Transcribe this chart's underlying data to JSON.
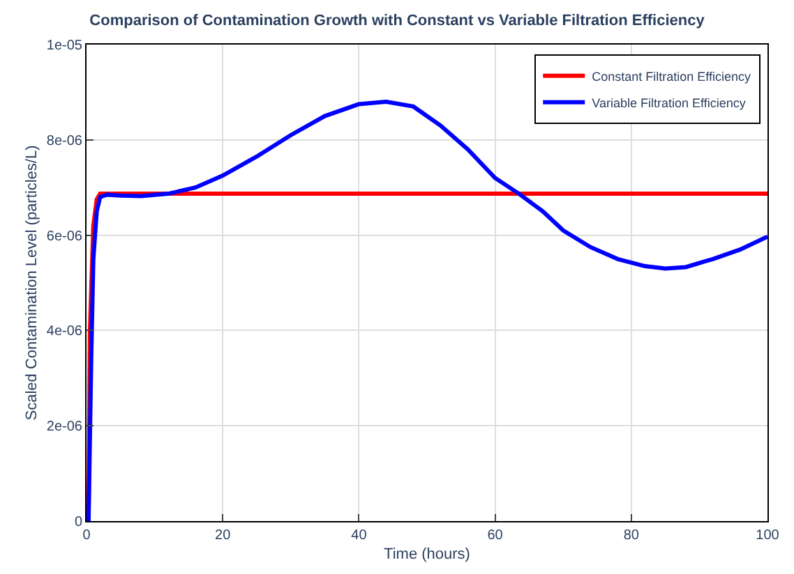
{
  "chart_data": {
    "type": "line",
    "title": "Comparison of Contamination Growth with Constant vs Variable Filtration Efficiency",
    "xlabel": "Time (hours)",
    "ylabel": "Scaled Contamination Level (particles/L)",
    "xlim": [
      0,
      100
    ],
    "xticks": [
      0,
      20,
      40,
      60,
      80,
      100
    ],
    "ylim": [
      0,
      1e-05
    ],
    "yticks": [
      {
        "value": 0,
        "label": "0"
      },
      {
        "value": 2e-06,
        "label": "2e-06"
      },
      {
        "value": 4e-06,
        "label": "4e-06"
      },
      {
        "value": 6e-06,
        "label": "6e-06"
      },
      {
        "value": 8e-06,
        "label": "8e-06"
      },
      {
        "value": 1e-05,
        "label": "1e-05"
      }
    ],
    "grid": true,
    "legend": "top right",
    "line_style": "solid",
    "series": [
      {
        "name": "Constant Filtration Efficiency",
        "color": "#ff0000",
        "x": [
          0.3,
          0.5,
          1,
          1.5,
          2,
          100
        ],
        "values": [
          0,
          4e-06,
          6.2e-06,
          6.75e-06,
          6.87e-06,
          6.87e-06
        ]
      },
      {
        "name": "Variable Filtration Efficiency",
        "color": "#0000ff",
        "x": [
          0.3,
          0.7,
          1,
          1.5,
          2,
          3,
          5,
          8,
          12,
          16,
          20,
          25,
          30,
          35,
          40,
          44,
          48,
          52,
          56,
          60,
          63.5,
          67,
          70,
          74,
          78,
          82,
          85,
          88,
          92,
          96,
          100
        ],
        "values": [
          0,
          3.5e-06,
          5.5e-06,
          6.5e-06,
          6.8e-06,
          6.85e-06,
          6.83e-06,
          6.82e-06,
          6.87e-06,
          7e-06,
          7.25e-06,
          7.65e-06,
          8.1e-06,
          8.5e-06,
          8.75e-06,
          8.8e-06,
          8.7e-06,
          8.3e-06,
          7.8e-06,
          7.2e-06,
          6.87e-06,
          6.5e-06,
          6.1e-06,
          5.75e-06,
          5.5e-06,
          5.35e-06,
          5.3e-06,
          5.33e-06,
          5.5e-06,
          5.7e-06,
          5.97e-06
        ]
      }
    ]
  }
}
